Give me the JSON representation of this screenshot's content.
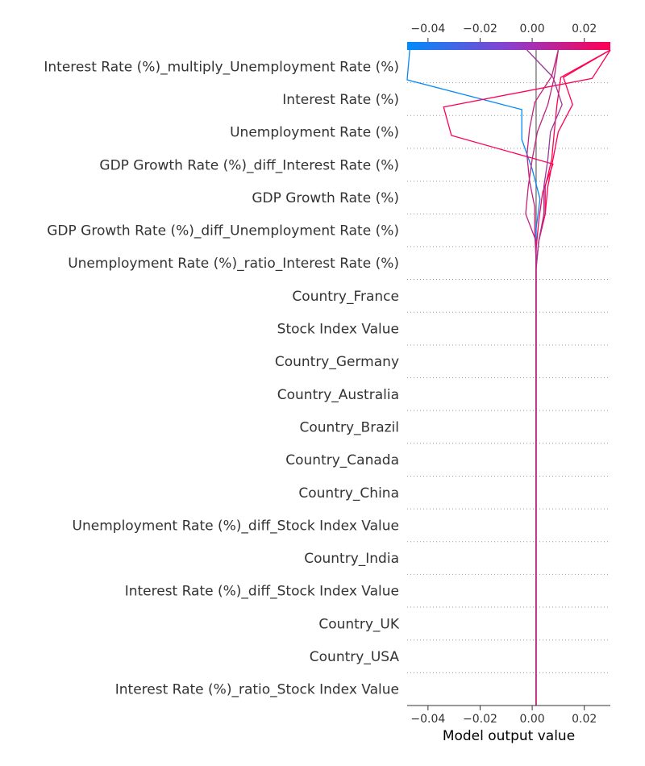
{
  "chart_data": {
    "type": "line",
    "subtype": "shap-decision-plot",
    "xlabel": "Model output value",
    "xlim": [
      -0.048,
      0.03
    ],
    "x_ticks": [
      -0.04,
      -0.02,
      0.0,
      0.02
    ],
    "x_tick_labels": [
      "−0.04",
      "−0.02",
      "0.00",
      "0.02"
    ],
    "base_value": 0.0015,
    "features": [
      "Interest Rate (%)_multiply_Unemployment Rate (%)",
      "Interest Rate (%)",
      "Unemployment Rate (%)",
      "GDP Growth Rate (%)_diff_Interest Rate (%)",
      "GDP Growth Rate (%)",
      "GDP Growth Rate (%)_diff_Unemployment Rate (%)",
      "Unemployment Rate (%)_ratio_Interest Rate (%)",
      "Country_France",
      "Stock Index Value",
      "Country_Germany",
      "Country_Australia",
      "Country_Brazil",
      "Country_Canada",
      "Country_China",
      "Unemployment Rate (%)_diff_Stock Index Value",
      "Country_India",
      "Interest Rate (%)_diff_Stock Index Value",
      "Country_UK",
      "Country_USA",
      "Interest Rate (%)_ratio_Stock Index Value"
    ],
    "colorbar": {
      "range": [
        -0.048,
        0.03
      ],
      "colors": [
        "#008bfb",
        "#ff0052"
      ]
    },
    "grid": "dotted horizontal",
    "series": [
      {
        "values": [
          0.0015,
          0.0015,
          0.0015,
          0.0015,
          0.0015,
          0.0015,
          0.0015,
          0.0015,
          0.0015,
          0.0015,
          0.0015,
          0.0015,
          0.0015,
          0.0015,
          0.0015,
          0.0015,
          0.0015,
          0.003,
          0.0,
          -0.004,
          -0.004,
          -0.048,
          -0.047
        ]
      },
      {
        "values": [
          0.0015,
          0.0015,
          0.0015,
          0.0015,
          0.0015,
          0.0015,
          0.0015,
          0.0015,
          0.0015,
          0.0015,
          0.0015,
          0.0015,
          0.0015,
          0.0015,
          0.0015,
          0.0015,
          0.0015,
          0.0025,
          0.004,
          0.008,
          -0.031,
          -0.034,
          0.023,
          0.03
        ]
      },
      {
        "values": [
          0.0015,
          0.0015,
          0.0015,
          0.0015,
          0.0015,
          0.0015,
          0.0015,
          0.0015,
          0.0015,
          0.0015,
          0.0015,
          0.0015,
          0.0015,
          0.0015,
          0.0015,
          0.0015,
          0.0015,
          0.0025,
          0.005,
          0.005,
          0.0075,
          0.0085,
          0.0095,
          0.011,
          0.03
        ]
      },
      {
        "values": [
          0.0015,
          0.0015,
          0.0015,
          0.0015,
          0.0015,
          0.0015,
          0.0015,
          0.0015,
          0.0015,
          0.0015,
          0.0015,
          0.0015,
          0.0015,
          0.0015,
          0.0015,
          0.0015,
          0.0015,
          0.0025,
          0.005,
          0.006,
          0.008,
          0.01,
          0.0155,
          0.012,
          0.03
        ]
      },
      {
        "values": [
          0.0015,
          0.0015,
          0.0015,
          0.0015,
          0.0015,
          0.0015,
          0.0015,
          0.0015,
          0.0015,
          0.0015,
          0.0015,
          0.0015,
          0.0015,
          0.0015,
          0.0015,
          0.0015,
          0.0015,
          0.0025,
          0.0045,
          0.0045,
          0.006,
          0.007,
          0.0115,
          0.008,
          -0.002
        ]
      },
      {
        "values": [
          0.0015,
          0.0015,
          0.0015,
          0.0015,
          0.0015,
          0.0015,
          0.0015,
          0.0015,
          0.0015,
          0.0015,
          0.0015,
          0.0015,
          0.0015,
          0.0015,
          0.0015,
          0.0015,
          0.0015,
          0.0015,
          0.001,
          0.001,
          -0.001,
          -0.002,
          -0.001,
          0.001,
          0.0075,
          0.01
        ]
      },
      {
        "values": [
          0.0015,
          0.0015,
          0.0015,
          0.0015,
          0.0015,
          0.0015,
          0.0015,
          0.0015,
          0.0015,
          0.0015,
          0.0015,
          0.0015,
          0.0015,
          0.0015,
          0.0015,
          0.0015,
          0.0015,
          0.0015,
          -0.0025,
          -0.0015,
          0.0,
          0.002,
          0.006,
          0.0085,
          0.01
        ]
      }
    ]
  }
}
